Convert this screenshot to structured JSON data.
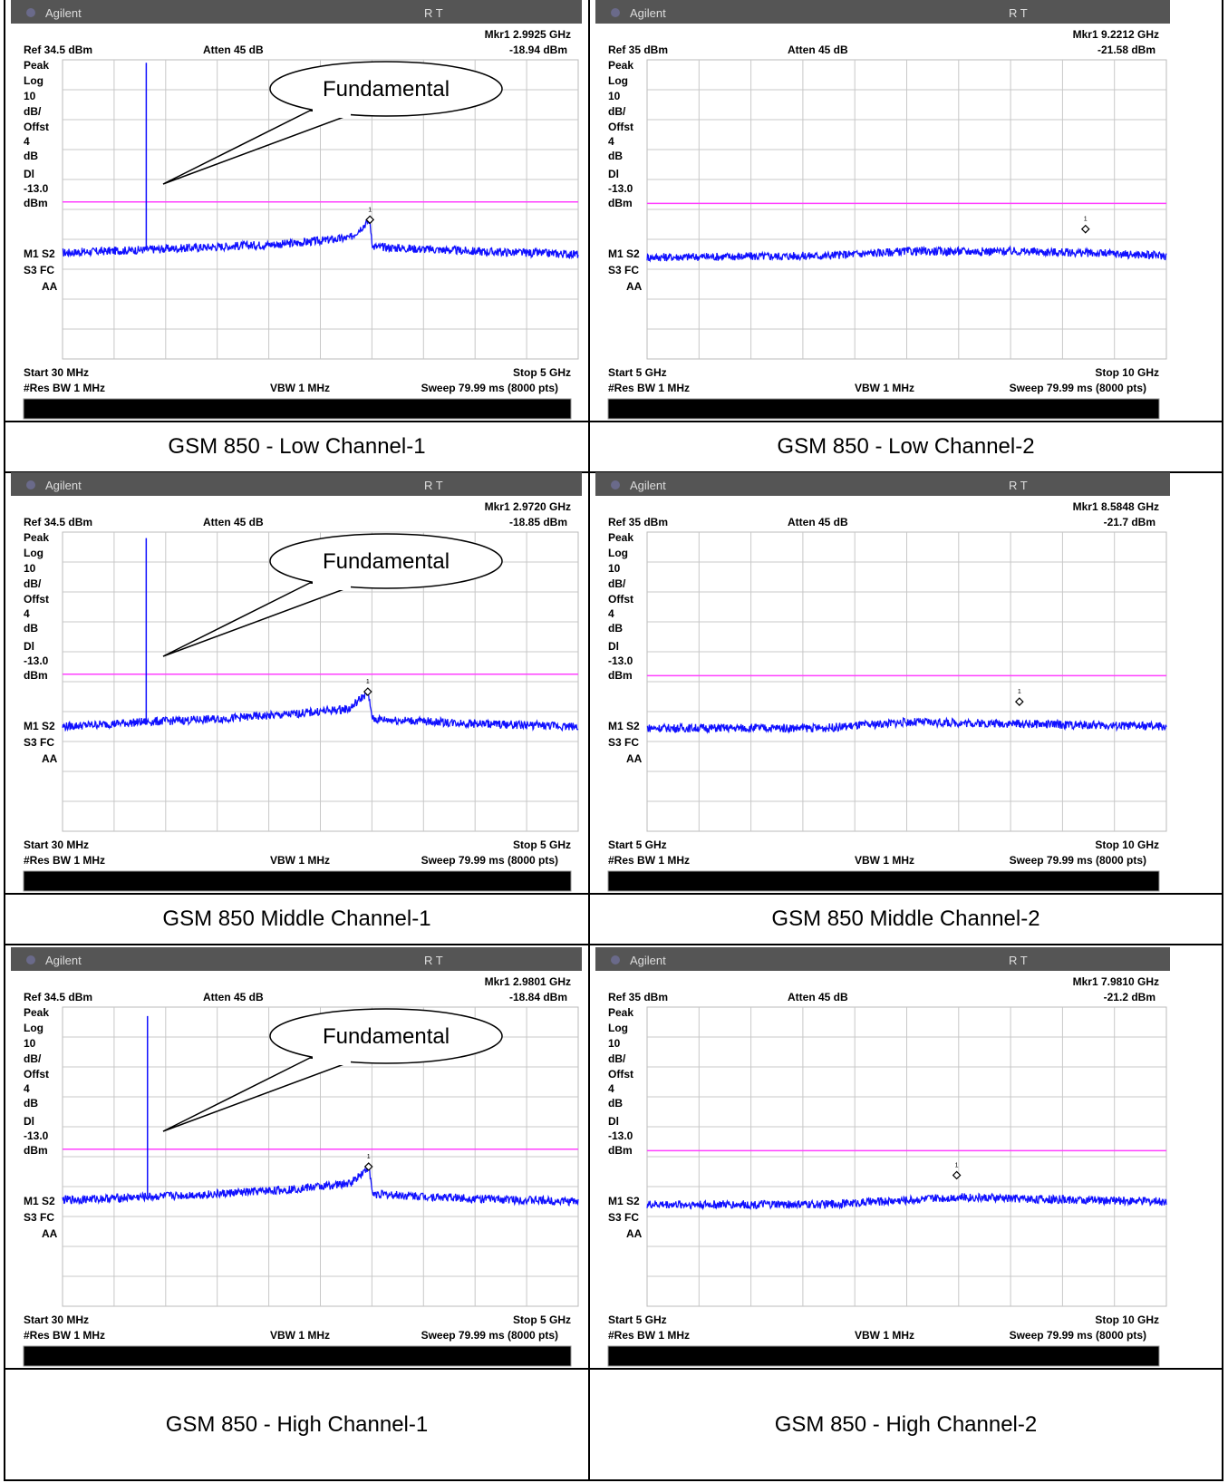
{
  "panels": [
    {
      "caption": "GSM 850 - Low Channel-1",
      "brand": "Agilent",
      "rt": "R   T",
      "marker_label": "Mkr1  2.9925 GHz",
      "marker_level": "-18.94 dBm",
      "ref": "Ref 34.5 dBm",
      "atten": "Atten 45 dB",
      "left_labels": [
        "Peak",
        "Log",
        "10",
        "dB/",
        "Offst",
        "4",
        "dB",
        "Dl",
        "-13.0",
        "dBm"
      ],
      "status_labels": [
        "M1  S2",
        "S3  FC",
        "AA"
      ],
      "start": "Start 30 MHz",
      "stop": "Stop 5 GHz",
      "res_bw": "#Res BW 1 MHz",
      "vbw": "VBW 1 MHz",
      "sweep": "Sweep 79.99 ms (8000 pts)",
      "callout": "Fundamental",
      "chart_data": {
        "type": "line",
        "x_range_ghz": [
          0.03,
          5
        ],
        "ref_level_dbm": 34.5,
        "scale_db_per_div": 10,
        "y_divisions": 10,
        "display_line_dbm": -13.0,
        "marker": {
          "x_ghz": 2.9925,
          "y_dbm": -18.94
        },
        "fundamental": {
          "x_ghz": 0.837,
          "peak_dbm": 33.5
        },
        "trace_points": [
          {
            "x": 0.03,
            "y": -30
          },
          {
            "x": 0.8,
            "y": -29
          },
          {
            "x": 1.5,
            "y": -28
          },
          {
            "x": 2.2,
            "y": -27
          },
          {
            "x": 2.8,
            "y": -25
          },
          {
            "x": 2.99,
            "y": -19
          },
          {
            "x": 3.02,
            "y": -28
          },
          {
            "x": 4.0,
            "y": -29.5
          },
          {
            "x": 5.0,
            "y": -30.5
          }
        ]
      }
    },
    {
      "caption": "GSM 850 - Low Channel-2",
      "brand": "Agilent",
      "rt": "R   T",
      "marker_label": "Mkr1  9.2212 GHz",
      "marker_level": "-21.58 dBm",
      "ref": "Ref 35 dBm",
      "atten": "Atten 45 dB",
      "left_labels": [
        "Peak",
        "Log",
        "10",
        "dB/",
        "Offst",
        "4",
        "dB",
        "Dl",
        "-13.0",
        "dBm"
      ],
      "status_labels": [
        "M1  S2",
        "S3  FC",
        "AA"
      ],
      "start": "Start 5 GHz",
      "stop": "Stop 10 GHz",
      "res_bw": "#Res BW 1 MHz",
      "vbw": "VBW 1 MHz",
      "sweep": "Sweep 79.99 ms (8000 pts)",
      "callout": "",
      "chart_data": {
        "type": "line",
        "x_range_ghz": [
          5,
          10
        ],
        "ref_level_dbm": 35,
        "scale_db_per_div": 10,
        "y_divisions": 10,
        "display_line_dbm": -13.0,
        "marker": {
          "x_ghz": 9.2212,
          "y_dbm": -21.58
        },
        "fundamental": null,
        "trace_points": [
          {
            "x": 5.0,
            "y": -31
          },
          {
            "x": 6.7,
            "y": -30.5
          },
          {
            "x": 7.5,
            "y": -29
          },
          {
            "x": 8.5,
            "y": -29
          },
          {
            "x": 9.2,
            "y": -29.5
          },
          {
            "x": 10.0,
            "y": -30.5
          }
        ]
      }
    },
    {
      "caption": "GSM 850 Middle Channel-1",
      "brand": "Agilent",
      "rt": "R   T",
      "marker_label": "Mkr1  2.9720 GHz",
      "marker_level": "-18.85 dBm",
      "ref": "Ref 34.5 dBm",
      "atten": "Atten 45 dB",
      "left_labels": [
        "Peak",
        "Log",
        "10",
        "dB/",
        "Offst",
        "4",
        "dB",
        "Dl",
        "-13.0",
        "dBm"
      ],
      "status_labels": [
        "M1  S2",
        "S3  FC",
        "AA"
      ],
      "start": "Start 30 MHz",
      "stop": "Stop 5 GHz",
      "res_bw": "#Res BW 1 MHz",
      "vbw": "VBW 1 MHz",
      "sweep": "Sweep 79.99 ms (8000 pts)",
      "callout": "Fundamental",
      "chart_data": {
        "type": "line",
        "x_range_ghz": [
          0.03,
          5
        ],
        "ref_level_dbm": 34.5,
        "scale_db_per_div": 10,
        "y_divisions": 10,
        "display_line_dbm": -13.0,
        "marker": {
          "x_ghz": 2.972,
          "y_dbm": -18.85
        },
        "fundamental": {
          "x_ghz": 0.8366,
          "peak_dbm": 32.5
        },
        "trace_points": [
          {
            "x": 0.03,
            "y": -30.5
          },
          {
            "x": 0.8,
            "y": -29
          },
          {
            "x": 1.5,
            "y": -28
          },
          {
            "x": 2.2,
            "y": -26.5
          },
          {
            "x": 2.8,
            "y": -24.5
          },
          {
            "x": 2.97,
            "y": -19
          },
          {
            "x": 3.02,
            "y": -28
          },
          {
            "x": 4.0,
            "y": -29.5
          },
          {
            "x": 5.0,
            "y": -30.5
          }
        ]
      }
    },
    {
      "caption": "GSM 850 Middle Channel-2",
      "brand": "Agilent",
      "rt": "R   T",
      "marker_label": "Mkr1  8.5848 GHz",
      "marker_level": "-21.7 dBm",
      "ref": "Ref 35 dBm",
      "atten": "Atten 45 dB",
      "left_labels": [
        "Peak",
        "Log",
        "10",
        "dB/",
        "Offst",
        "4",
        "dB",
        "Dl",
        "-13.0",
        "dBm"
      ],
      "status_labels": [
        "M1  S2",
        "S3  FC",
        "AA"
      ],
      "start": "Start 5 GHz",
      "stop": "Stop 10 GHz",
      "res_bw": "#Res BW 1 MHz",
      "vbw": "VBW 1 MHz",
      "sweep": "Sweep 79.99 ms (8000 pts)",
      "callout": "",
      "chart_data": {
        "type": "line",
        "x_range_ghz": [
          5,
          10
        ],
        "ref_level_dbm": 35,
        "scale_db_per_div": 10,
        "y_divisions": 10,
        "display_line_dbm": -13.0,
        "marker": {
          "x_ghz": 8.5848,
          "y_dbm": -21.7
        },
        "fundamental": null,
        "trace_points": [
          {
            "x": 5.0,
            "y": -30.5
          },
          {
            "x": 6.7,
            "y": -30.5
          },
          {
            "x": 7.5,
            "y": -28.5
          },
          {
            "x": 8.5,
            "y": -29
          },
          {
            "x": 9.2,
            "y": -29.5
          },
          {
            "x": 10.0,
            "y": -30
          }
        ]
      }
    },
    {
      "caption": "GSM 850 - High Channel-1",
      "brand": "Agilent",
      "rt": "R   T",
      "marker_label": "Mkr1  2.9801 GHz",
      "marker_level": "-18.84 dBm",
      "ref": "Ref 34.5 dBm",
      "atten": "Atten 45 dB",
      "left_labels": [
        "Peak",
        "Log",
        "10",
        "dB/",
        "Offst",
        "4",
        "dB",
        "Dl",
        "-13.0",
        "dBm"
      ],
      "status_labels": [
        "M1  S2",
        "S3  FC",
        "AA"
      ],
      "start": "Start 30 MHz",
      "stop": "Stop 5 GHz",
      "res_bw": "#Res BW 1 MHz",
      "vbw": "VBW 1 MHz",
      "sweep": "Sweep 79.99 ms (8000 pts)",
      "callout": "Fundamental",
      "chart_data": {
        "type": "line",
        "x_range_ghz": [
          0.03,
          5
        ],
        "ref_level_dbm": 34.5,
        "scale_db_per_div": 10,
        "y_divisions": 10,
        "display_line_dbm": -13.0,
        "marker": {
          "x_ghz": 2.9801,
          "y_dbm": -18.84
        },
        "fundamental": {
          "x_ghz": 0.849,
          "peak_dbm": 31.5
        },
        "trace_points": [
          {
            "x": 0.03,
            "y": -30
          },
          {
            "x": 0.8,
            "y": -29
          },
          {
            "x": 1.5,
            "y": -28
          },
          {
            "x": 2.2,
            "y": -26.5
          },
          {
            "x": 2.8,
            "y": -24.5
          },
          {
            "x": 2.98,
            "y": -19
          },
          {
            "x": 3.02,
            "y": -28
          },
          {
            "x": 4.0,
            "y": -29.5
          },
          {
            "x": 5.0,
            "y": -30.5
          }
        ]
      }
    },
    {
      "caption": "GSM 850 - High Channel-2",
      "brand": "Agilent",
      "rt": "R   T",
      "marker_label": "Mkr1  7.9810 GHz",
      "marker_level": "-21.2 dBm",
      "ref": "Ref 35 dBm",
      "atten": "Atten 45 dB",
      "left_labels": [
        "Peak",
        "Log",
        "10",
        "dB/",
        "Offst",
        "4",
        "dB",
        "Dl",
        "-13.0",
        "dBm"
      ],
      "status_labels": [
        "M1  S2",
        "S3  FC",
        "AA"
      ],
      "start": "Start 5 GHz",
      "stop": "Stop 10 GHz",
      "res_bw": "#Res BW 1 MHz",
      "vbw": "VBW 1 MHz",
      "sweep": "Sweep 79.99 ms (8000 pts)",
      "callout": "",
      "chart_data": {
        "type": "line",
        "x_range_ghz": [
          5,
          10
        ],
        "ref_level_dbm": 35,
        "scale_db_per_div": 10,
        "y_divisions": 10,
        "display_line_dbm": -13.0,
        "marker": {
          "x_ghz": 7.981,
          "y_dbm": -21.2
        },
        "fundamental": null,
        "trace_points": [
          {
            "x": 5.0,
            "y": -31
          },
          {
            "x": 6.7,
            "y": -31
          },
          {
            "x": 7.5,
            "y": -29.5
          },
          {
            "x": 8.0,
            "y": -28.5
          },
          {
            "x": 9.2,
            "y": -29.5
          },
          {
            "x": 10.0,
            "y": -30
          }
        ]
      }
    }
  ],
  "colors": {
    "trace": "#1010ff",
    "display_line": "#ff40ff",
    "grid": "#c8c8c8",
    "header_bg": "#555555"
  }
}
